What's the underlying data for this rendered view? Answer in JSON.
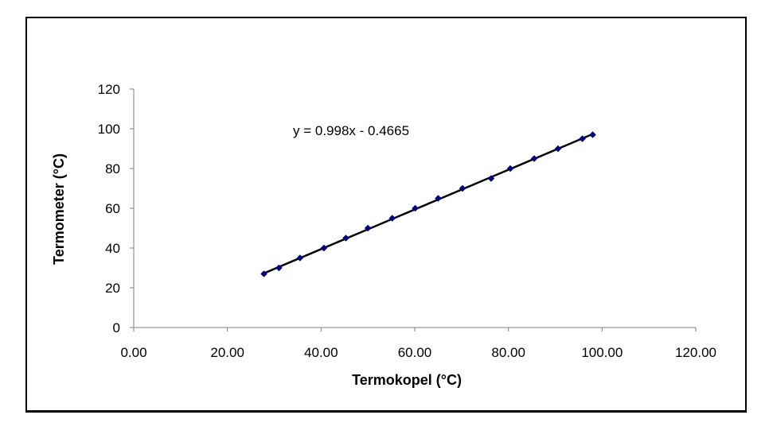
{
  "chart_data": {
    "type": "scatter",
    "xlabel": "Termokopel  (°C)",
    "ylabel": "Termometer (°C)",
    "xlim": [
      0,
      120
    ],
    "ylim": [
      0,
      120
    ],
    "x_ticks": [
      "0.00",
      "20.00",
      "40.00",
      "60.00",
      "80.00",
      "100.00",
      "120.00"
    ],
    "y_ticks": [
      "0",
      "20",
      "40",
      "60",
      "80",
      "100",
      "120"
    ],
    "grid": false,
    "legend": "none",
    "series": [
      {
        "points": [
          {
            "x": 27.8,
            "y": 27
          },
          {
            "x": 31.0,
            "y": 30
          },
          {
            "x": 35.5,
            "y": 35
          },
          {
            "x": 40.6,
            "y": 40
          },
          {
            "x": 45.3,
            "y": 45
          },
          {
            "x": 50.0,
            "y": 50
          },
          {
            "x": 55.2,
            "y": 55
          },
          {
            "x": 60.1,
            "y": 60
          },
          {
            "x": 65.0,
            "y": 65
          },
          {
            "x": 70.2,
            "y": 70
          },
          {
            "x": 76.3,
            "y": 75
          },
          {
            "x": 80.4,
            "y": 80
          },
          {
            "x": 85.5,
            "y": 85
          },
          {
            "x": 90.6,
            "y": 90
          },
          {
            "x": 95.8,
            "y": 95
          },
          {
            "x": 98.0,
            "y": 97
          }
        ]
      }
    ],
    "trendline": {
      "equation": "y = 0.998x - 0.4665",
      "slope": 0.998,
      "intercept": -0.4665,
      "x_range": [
        27.8,
        98.0
      ]
    },
    "colors": {
      "marker": "#000080",
      "trendline": "#000000"
    }
  }
}
